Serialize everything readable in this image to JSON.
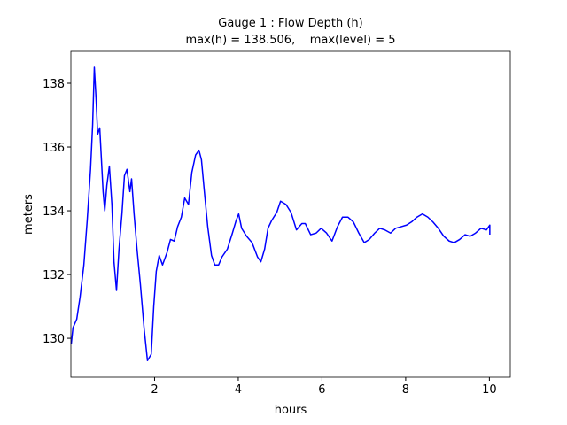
{
  "chart_data": {
    "type": "line",
    "title": "Gauge 1 : Flow Depth (h)",
    "subtitle": "max(h) = 138.506,    max(level) = 5",
    "x_label": "hours",
    "y_label": "meters",
    "xlim": [
      0,
      10.5
    ],
    "ylim": [
      128.78,
      139.0
    ],
    "xticks": [
      2,
      4,
      6,
      8,
      10
    ],
    "yticks": [
      130,
      132,
      134,
      136,
      138
    ],
    "series": [
      {
        "color": "#0000ff",
        "x": [
          0.01,
          0.05,
          0.14,
          0.22,
          0.31,
          0.39,
          0.47,
          0.52,
          0.56,
          0.6,
          0.64,
          0.69,
          0.73,
          0.77,
          0.81,
          0.86,
          0.92,
          0.98,
          1.03,
          1.09,
          1.15,
          1.22,
          1.28,
          1.34,
          1.41,
          1.45,
          1.51,
          1.58,
          1.66,
          1.75,
          1.83,
          1.92,
          1.98,
          2.04,
          2.11,
          2.19,
          2.3,
          2.38,
          2.47,
          2.55,
          2.64,
          2.72,
          2.81,
          2.89,
          2.98,
          3.06,
          3.12,
          3.19,
          3.27,
          3.36,
          3.44,
          3.53,
          3.61,
          3.74,
          3.86,
          3.95,
          4.01,
          4.08,
          4.2,
          4.33,
          4.46,
          4.54,
          4.63,
          4.71,
          4.8,
          4.92,
          5.01,
          5.14,
          5.26,
          5.39,
          5.52,
          5.6,
          5.73,
          5.86,
          5.98,
          6.11,
          6.24,
          6.37,
          6.49,
          6.62,
          6.75,
          6.88,
          7.01,
          7.13,
          7.26,
          7.38,
          7.5,
          7.64,
          7.76,
          7.89,
          8.02,
          8.14,
          8.27,
          8.4,
          8.53,
          8.65,
          8.78,
          8.91,
          9.04,
          9.16,
          9.29,
          9.42,
          9.54,
          9.67,
          9.8,
          9.93,
          10.01,
          10.01
        ],
        "values": [
          129.83,
          130.33,
          130.6,
          131.3,
          132.3,
          133.7,
          135.3,
          136.7,
          138.5,
          137.56,
          136.4,
          136.6,
          135.6,
          134.6,
          134.0,
          134.8,
          135.4,
          134.2,
          132.4,
          131.5,
          132.8,
          133.9,
          135.1,
          135.3,
          134.6,
          135.0,
          133.9,
          132.8,
          131.7,
          130.3,
          129.3,
          129.5,
          131.0,
          132.1,
          132.6,
          132.3,
          132.7,
          133.1,
          133.05,
          133.5,
          133.8,
          134.4,
          134.2,
          135.2,
          135.75,
          135.9,
          135.6,
          134.6,
          133.5,
          132.6,
          132.3,
          132.3,
          132.55,
          132.8,
          133.3,
          133.7,
          133.9,
          133.45,
          133.2,
          133.0,
          132.55,
          132.4,
          132.8,
          133.45,
          133.7,
          133.95,
          134.3,
          134.2,
          133.95,
          133.4,
          133.6,
          133.6,
          133.25,
          133.3,
          133.45,
          133.3,
          133.05,
          133.5,
          133.8,
          133.8,
          133.65,
          133.3,
          133.0,
          133.1,
          133.3,
          133.45,
          133.4,
          133.3,
          133.45,
          133.5,
          133.55,
          133.65,
          133.8,
          133.9,
          133.8,
          133.65,
          133.45,
          133.2,
          133.05,
          133.0,
          133.1,
          133.25,
          133.2,
          133.3,
          133.45,
          133.4,
          133.55,
          133.25
        ]
      }
    ]
  }
}
